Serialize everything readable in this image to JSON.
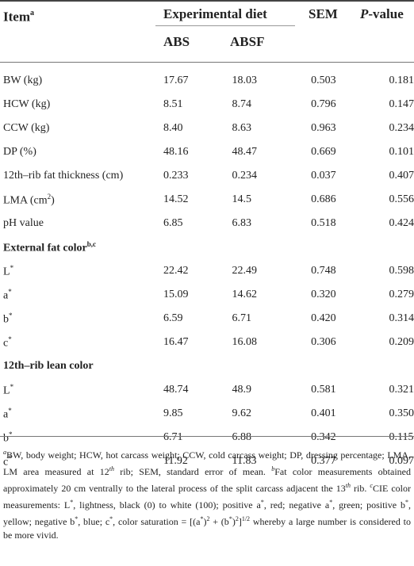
{
  "header": {
    "item": "Item",
    "item_sup": "a",
    "group": "Experimental diet",
    "sem": "SEM",
    "p_value_italic": "P",
    "p_value_rest": "-value",
    "col_abs": "ABS",
    "col_absf": "ABSF"
  },
  "rows": [
    {
      "label": "BW (kg)",
      "abs": "17.67",
      "absf": "18.03",
      "sem": "0.503",
      "p": "0.181"
    },
    {
      "label": "HCW (kg)",
      "abs": "8.51",
      "absf": "8.74",
      "sem": "0.796",
      "p": "0.147"
    },
    {
      "label": "CCW (kg)",
      "abs": "8.40",
      "absf": "8.63",
      "sem": "0.963",
      "p": "0.234"
    },
    {
      "label": "DP (%)",
      "abs": "48.16",
      "absf": "48.47",
      "sem": "0.669",
      "p": "0.101"
    },
    {
      "label": "12th–rib fat thickness (cm)",
      "abs": "0.233",
      "absf": "0.234",
      "sem": "0.037",
      "p": "0.407"
    },
    {
      "label_pre": "LMA (cm",
      "label_sup": "2",
      "label_post": ")",
      "abs": "14.52",
      "absf": "14.5",
      "sem": "0.686",
      "p": "0.556"
    },
    {
      "label": "pH value",
      "abs": "6.85",
      "absf": "6.83",
      "sem": "0.518",
      "p": "0.424"
    }
  ],
  "section_fat": {
    "label": "External fat color",
    "sup": "b,c"
  },
  "fat_rows": [
    {
      "label": "L",
      "abs": "22.42",
      "absf": "22.49",
      "sem": "0.748",
      "p": "0.598"
    },
    {
      "label": "a",
      "abs": "15.09",
      "absf": "14.62",
      "sem": "0.320",
      "p": "0.279"
    },
    {
      "label": "b",
      "abs": "6.59",
      "absf": "6.71",
      "sem": "0.420",
      "p": "0.314"
    },
    {
      "label": "c",
      "abs": "16.47",
      "absf": "16.08",
      "sem": "0.306",
      "p": "0.209"
    }
  ],
  "section_lean": {
    "label": "12th–rib lean color"
  },
  "lean_rows": [
    {
      "label": "L",
      "abs": "48.74",
      "absf": "48.9",
      "sem": "0.581",
      "p": "0.321"
    },
    {
      "label": "a",
      "abs": "9.85",
      "absf": "9.62",
      "sem": "0.401",
      "p": "0.350"
    },
    {
      "label": "b",
      "abs": "6.71",
      "absf": "6.88",
      "sem": "0.342",
      "p": "0.115"
    },
    {
      "label": "c",
      "abs": "11.92",
      "absf": "11.83",
      "sem": "0.377",
      "p": "0.097"
    }
  ],
  "star": "*",
  "footnote": {
    "a_mark": "a",
    "a_text": "BW, body weight; HCW, hot carcass weight; CCW, cold carcass weight; DP, dressing percentage; LMA, LM area measured at 12",
    "a_th": "th",
    "a_text2": " rib; SEM, standard error of mean. ",
    "b_mark": "b",
    "b_text": "Fat color measurements obtained approximately 20 cm ventrally to the lateral process of the split carcass adjacent the 13",
    "b_th": "th",
    "b_text2": " rib. ",
    "c_mark": "c",
    "c_text": "CIE color measurements: L",
    "c_text2": ", lightness, black (0) to white (100); positive a",
    "c_text3": ", red; negative a",
    "c_text4": ", green; positive b",
    "c_text5": ", yellow; negative b",
    "c_text6": ", blue; c",
    "c_text7": ", color saturation = [(a",
    "c_text8": ")",
    "c_two": "2",
    "c_text9": " + (b",
    "c_text10": ")",
    "c_two2": "2",
    "c_text11": "]",
    "c_half": "1/2",
    "c_text12": " whereby a large number is considered to be more vivid."
  }
}
